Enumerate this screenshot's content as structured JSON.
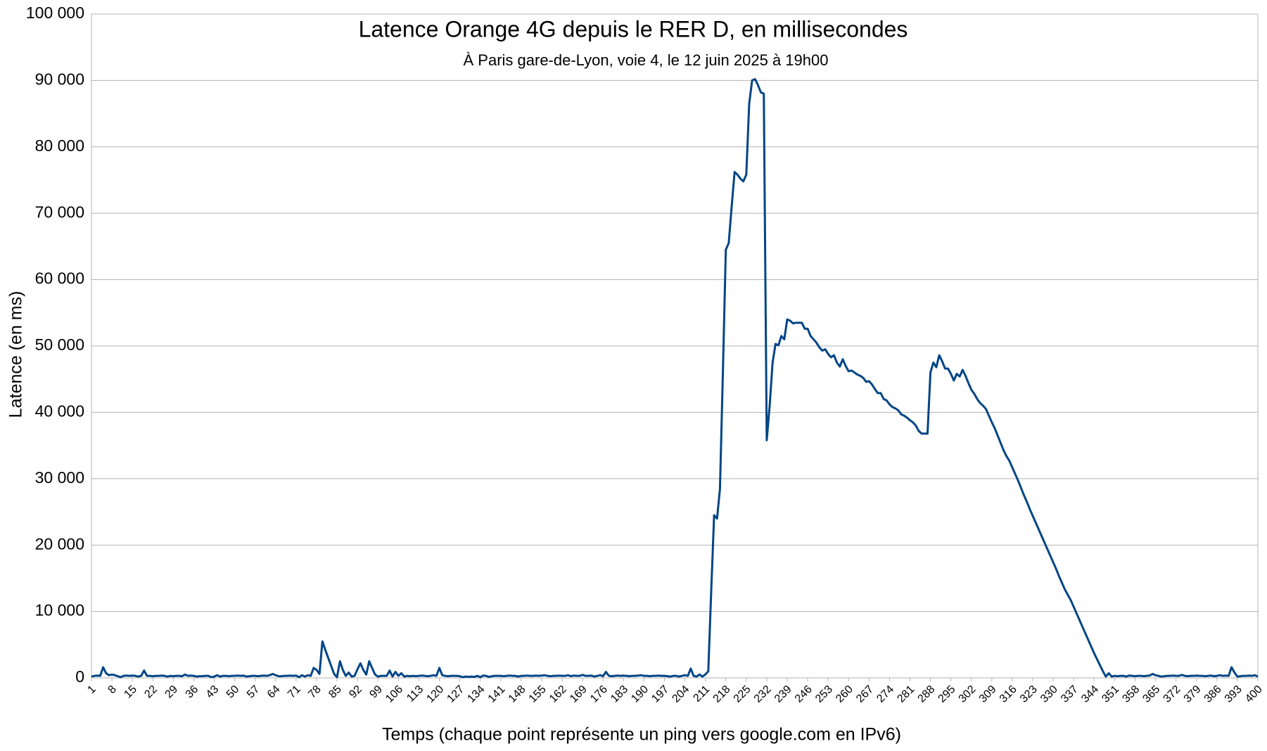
{
  "chart_data": {
    "type": "line",
    "title": "Latence Orange 4G depuis le RER D, en millisecondes",
    "subtitle": "À Paris gare-de-Lyon, voie 4, le 12 juin 2025 à 19h00",
    "xlabel": "Temps (chaque point représente un ping vers google.com en IPv6)",
    "ylabel": "Latence (en ms)",
    "color": "#004586",
    "grid": true,
    "xlim": [
      1,
      400
    ],
    "xticks": [
      1,
      8,
      15,
      22,
      29,
      36,
      43,
      50,
      57,
      64,
      71,
      78,
      85,
      92,
      99,
      106,
      113,
      120,
      127,
      134,
      141,
      148,
      155,
      162,
      169,
      176,
      183,
      190,
      197,
      204,
      211,
      218,
      225,
      232,
      239,
      246,
      253,
      260,
      267,
      274,
      281,
      288,
      295,
      302,
      309,
      316,
      323,
      330,
      337,
      344,
      351,
      358,
      365,
      372,
      379,
      386,
      393,
      400
    ],
    "ylim": [
      0,
      100000
    ],
    "yticks": [
      0,
      {
        "value": 10000,
        "label": "10 000"
      },
      {
        "value": 20000,
        "label": "20 000"
      },
      {
        "value": 30000,
        "label": "30 000"
      },
      {
        "value": 40000,
        "label": "40 000"
      },
      {
        "value": 50000,
        "label": "50 000"
      },
      {
        "value": 60000,
        "label": "60 000"
      },
      {
        "value": 70000,
        "label": "70 000"
      },
      {
        "value": 80000,
        "label": "80 000"
      },
      {
        "value": 90000,
        "label": "90 000"
      },
      {
        "value": 100000,
        "label": "100 000"
      }
    ],
    "x": [
      1,
      2,
      3,
      4,
      5,
      6,
      7,
      8,
      9,
      10,
      11,
      12,
      13,
      14,
      15,
      16,
      17,
      18,
      19,
      20,
      21,
      22,
      23,
      24,
      25,
      26,
      27,
      28,
      29,
      30,
      31,
      32,
      33,
      34,
      35,
      36,
      37,
      38,
      39,
      40,
      41,
      42,
      43,
      44,
      45,
      46,
      47,
      48,
      49,
      50,
      51,
      52,
      53,
      54,
      55,
      56,
      57,
      58,
      59,
      60,
      61,
      62,
      63,
      64,
      65,
      66,
      67,
      68,
      69,
      70,
      71,
      72,
      73,
      74,
      75,
      76,
      77,
      78,
      79,
      80,
      81,
      82,
      83,
      84,
      85,
      86,
      87,
      88,
      89,
      90,
      91,
      92,
      93,
      94,
      95,
      96,
      97,
      98,
      99,
      100,
      101,
      102,
      103,
      104,
      105,
      106,
      107,
      108,
      109,
      110,
      111,
      112,
      113,
      114,
      115,
      116,
      117,
      118,
      119,
      120,
      121,
      122,
      123,
      124,
      125,
      126,
      127,
      128,
      129,
      130,
      131,
      132,
      133,
      134,
      135,
      136,
      137,
      138,
      139,
      140,
      141,
      142,
      143,
      144,
      145,
      146,
      147,
      148,
      149,
      150,
      151,
      152,
      153,
      154,
      155,
      156,
      157,
      158,
      159,
      160,
      161,
      162,
      163,
      164,
      165,
      166,
      167,
      168,
      169,
      170,
      171,
      172,
      173,
      174,
      175,
      176,
      177,
      178,
      179,
      180,
      181,
      182,
      183,
      184,
      185,
      186,
      187,
      188,
      189,
      190,
      191,
      192,
      193,
      194,
      195,
      196,
      197,
      198,
      199,
      200,
      201,
      202,
      203,
      204,
      205,
      206,
      207,
      208,
      209,
      210,
      211,
      212,
      213,
      214,
      215,
      216,
      217,
      218,
      219,
      220,
      221,
      222,
      223,
      224,
      225,
      226,
      227,
      228,
      229,
      230,
      231,
      232,
      233,
      234,
      235,
      236,
      237,
      238,
      239,
      240,
      241,
      242,
      243,
      244,
      245,
      246,
      247,
      248,
      249,
      250,
      251,
      252,
      253,
      254,
      255,
      256,
      257,
      258,
      259,
      260,
      261,
      262,
      263,
      264,
      265,
      266,
      267,
      268,
      269,
      270,
      271,
      272,
      273,
      274,
      275,
      276,
      277,
      278,
      279,
      280,
      281,
      282,
      283,
      284,
      285,
      286,
      287,
      288,
      289,
      290,
      291,
      292,
      293,
      294,
      295,
      296,
      297,
      298,
      299,
      300,
      301,
      302,
      303,
      304,
      305,
      306,
      307,
      308,
      309,
      310,
      311,
      312,
      313,
      314,
      315,
      316,
      317,
      318,
      319,
      320,
      321,
      322,
      323,
      324,
      325,
      326,
      327,
      328,
      329,
      330,
      331,
      332,
      333,
      334,
      335,
      336,
      337,
      338,
      339,
      340,
      341,
      342,
      343,
      344,
      345,
      346,
      347,
      348,
      349,
      350,
      351,
      352,
      353,
      354,
      355,
      356,
      357,
      358,
      359,
      360,
      361,
      362,
      363,
      364,
      365,
      366,
      367,
      368,
      369,
      370,
      371,
      372,
      373,
      374,
      375,
      376,
      377,
      378,
      379,
      380,
      381,
      382,
      383,
      384,
      385,
      386,
      387,
      388,
      389,
      390,
      391,
      392,
      393,
      394,
      395,
      396,
      397,
      398,
      399,
      400
    ],
    "values": [
      200,
      300,
      350,
      300,
      1600,
      700,
      400,
      500,
      400,
      250,
      100,
      300,
      350,
      300,
      350,
      300,
      200,
      300,
      1100,
      300,
      300,
      250,
      300,
      300,
      350,
      300,
      200,
      300,
      250,
      300,
      300,
      250,
      500,
      300,
      350,
      300,
      200,
      250,
      250,
      300,
      300,
      100,
      200,
      400,
      200,
      300,
      300,
      250,
      300,
      300,
      350,
      300,
      350,
      200,
      250,
      300,
      300,
      250,
      300,
      350,
      300,
      400,
      600,
      400,
      250,
      250,
      300,
      300,
      350,
      300,
      350,
      100,
      400,
      200,
      400,
      300,
      1500,
      1200,
      600,
      5500,
      4200,
      3000,
      1800,
      600,
      100,
      2500,
      1200,
      300,
      800,
      200,
      300,
      1300,
      2200,
      1200,
      500,
      2500,
      1500,
      500,
      200,
      300,
      300,
      300,
      1100,
      200,
      900,
      300,
      700,
      200,
      300,
      250,
      300,
      250,
      300,
      350,
      300,
      250,
      300,
      400,
      300,
      1500,
      400,
      300,
      250,
      300,
      300,
      300,
      250,
      100,
      200,
      150,
      200,
      150,
      300,
      100,
      350,
      300,
      150,
      250,
      300,
      300,
      300,
      250,
      300,
      350,
      300,
      300,
      200,
      300,
      300,
      350,
      300,
      300,
      350,
      300,
      350,
      400,
      300,
      250,
      300,
      300,
      350,
      300,
      300,
      400,
      250,
      350,
      300,
      300,
      450,
      300,
      300,
      350,
      200,
      300,
      400,
      250,
      900,
      300,
      250,
      300,
      350,
      300,
      350,
      300,
      250,
      300,
      300,
      350,
      400,
      300,
      300,
      250,
      300,
      300,
      350,
      300,
      300,
      250,
      200,
      300,
      300,
      200,
      300,
      400,
      300,
      1400,
      300,
      200,
      500,
      200,
      500,
      1000,
      13000,
      24500,
      24000,
      28500,
      46000,
      64500,
      65500,
      71000,
      76200,
      75800,
      75200,
      74800,
      75800,
      86500,
      90000,
      90200,
      89300,
      88200,
      88000,
      35800,
      41000,
      47500,
      50300,
      50100,
      51500,
      51000,
      54000,
      53800,
      53400,
      53500,
      53500,
      53500,
      52600,
      52600,
      51500,
      51000,
      50500,
      49800,
      49300,
      49500,
      48800,
      48300,
      48600,
      47500,
      46900,
      48000,
      47000,
      46200,
      46300,
      46000,
      45700,
      45500,
      45200,
      44600,
      44700,
      44200,
      43500,
      42900,
      42900,
      42000,
      41800,
      41200,
      40800,
      40600,
      40300,
      39700,
      39500,
      39200,
      38800,
      38500,
      38000,
      37200,
      36800,
      36800,
      36800,
      46000,
      47500,
      46800,
      48600,
      47700,
      46600,
      46600,
      45800,
      44800,
      45800,
      45400,
      46400,
      45500,
      44400,
      43400,
      42800,
      42000,
      41400,
      41000,
      40500,
      39500,
      38500,
      37600,
      36500,
      35400,
      34300,
      33400,
      32700,
      31700,
      30700,
      29700,
      28600,
      27500,
      26500,
      25400,
      24400,
      23400,
      22400,
      21400,
      20400,
      19400,
      18400,
      17400,
      16400,
      15300,
      14300,
      13300,
      12500,
      11700,
      10700,
      9700,
      8700,
      7700,
      6700,
      5700,
      4700,
      3700,
      2800,
      1900,
      1000,
      200,
      700,
      200,
      300,
      250,
      300,
      300,
      200,
      350,
      300,
      250,
      300,
      300,
      250,
      300,
      350,
      600,
      400,
      300,
      200,
      250,
      300,
      300,
      350,
      300,
      300,
      450,
      300,
      250,
      300,
      300,
      350,
      300,
      300,
      250,
      300,
      350,
      250,
      300,
      400,
      300,
      350,
      300,
      1600,
      800,
      200,
      250,
      300,
      300,
      350,
      300,
      400,
      200
    ]
  }
}
